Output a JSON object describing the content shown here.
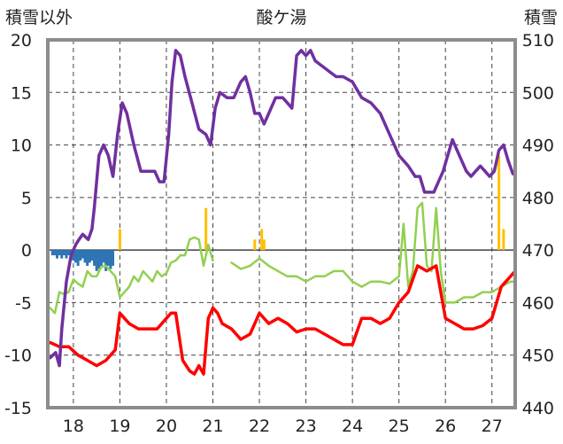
{
  "chart_data": {
    "type": "line",
    "title": "酸ケ湯",
    "left_axis": {
      "label": "積雪以外",
      "ylim": [
        -15,
        20
      ],
      "ticks": [
        20,
        15,
        10,
        5,
        0,
        -5,
        -10,
        -15
      ]
    },
    "right_axis": {
      "label": "積雪",
      "ylim": [
        440,
        510
      ],
      "ticks": [
        510,
        500,
        490,
        480,
        470,
        460,
        450,
        440
      ]
    },
    "x_axis": {
      "xlim": [
        17.45,
        27.5
      ],
      "ticks": [
        18,
        19,
        20,
        21,
        22,
        23,
        24,
        25,
        26,
        27
      ]
    },
    "grid": true,
    "series": [
      {
        "key": "snow_depth",
        "axis": "right",
        "color": "#7030a0",
        "x": [
          17.5,
          17.62,
          17.7,
          17.75,
          17.85,
          17.95,
          18.05,
          18.12,
          18.2,
          18.32,
          18.4,
          18.45,
          18.55,
          18.65,
          18.75,
          18.85,
          18.95,
          19.05,
          19.15,
          19.3,
          19.45,
          19.6,
          19.75,
          19.85,
          19.95,
          20.05,
          20.12,
          20.2,
          20.3,
          20.4,
          20.55,
          20.7,
          20.85,
          20.95,
          21.05,
          21.15,
          21.3,
          21.45,
          21.6,
          21.7,
          21.8,
          21.9,
          22.0,
          22.1,
          22.2,
          22.35,
          22.5,
          22.6,
          22.7,
          22.8,
          22.9,
          23.0,
          23.1,
          23.2,
          23.35,
          23.5,
          23.65,
          23.8,
          24.0,
          24.2,
          24.4,
          24.6,
          24.8,
          25.0,
          25.2,
          25.35,
          25.45,
          25.55,
          25.65,
          25.75,
          25.85,
          25.95,
          26.05,
          26.15,
          26.25,
          26.35,
          26.45,
          26.55,
          26.65,
          26.75,
          26.85,
          26.95,
          27.05,
          27.15,
          27.25,
          27.35,
          27.45
        ],
        "values": [
          449.5,
          450.5,
          448,
          455,
          464,
          469,
          471,
          472,
          473,
          472,
          474,
          478,
          488,
          490,
          488,
          484,
          492,
          498,
          496,
          490,
          485,
          485,
          485,
          483,
          483,
          492,
          502,
          508,
          507,
          503,
          498,
          493,
          492,
          490,
          497,
          500,
          499,
          499,
          502,
          503,
          500,
          496,
          496,
          494,
          496,
          499,
          499,
          498,
          497,
          507,
          508,
          507,
          508,
          506,
          505,
          504,
          503,
          503,
          502,
          499,
          498,
          496,
          492,
          488,
          486,
          484,
          484,
          481,
          481,
          481,
          483,
          485,
          488,
          491,
          489,
          487,
          485,
          484,
          485,
          486,
          485,
          484,
          485,
          489,
          490,
          487,
          484.5
        ]
      },
      {
        "key": "temperature",
        "axis": "left",
        "color": "#92d050",
        "x": [
          17.5,
          17.6,
          17.7,
          17.8,
          17.9,
          18.0,
          18.1,
          18.2,
          18.3,
          18.4,
          18.5,
          18.6,
          18.7,
          18.8,
          18.9,
          19.0,
          19.1,
          19.2,
          19.3,
          19.4,
          19.5,
          19.6,
          19.7,
          19.8,
          19.9,
          20.0,
          20.1,
          20.2,
          20.3,
          20.4,
          20.5,
          20.6,
          20.7,
          20.8,
          20.9,
          21.0,
          21.2,
          21.4,
          21.6,
          21.8,
          22.0,
          22.2,
          22.4,
          22.6,
          22.8,
          23.0,
          23.2,
          23.4,
          23.6,
          23.8,
          24.0,
          24.2,
          24.4,
          24.6,
          24.8,
          25.0,
          25.1,
          25.2,
          25.3,
          25.4,
          25.5,
          25.6,
          25.7,
          25.8,
          25.9,
          26.0,
          26.1,
          26.2,
          26.4,
          26.6,
          26.8,
          27.0,
          27.2,
          27.4,
          27.5
        ],
        "values": [
          -5.5,
          -6.0,
          -4.0,
          -4.2,
          -4.0,
          -2.8,
          -3.2,
          -3.5,
          -2.0,
          -2.5,
          -2.5,
          -1.6,
          -1.5,
          -2.0,
          -2.5,
          -4.5,
          -4.0,
          -3.5,
          -2.5,
          -3.0,
          -2.0,
          -2.5,
          -3.0,
          -2.0,
          -2.5,
          -2.2,
          -1.2,
          -1.0,
          -0.5,
          -0.5,
          1.0,
          1.2,
          1.0,
          -1.5,
          0.5,
          -1.0,
          null,
          -1.2,
          -1.8,
          -1.5,
          -0.8,
          -1.5,
          -2.0,
          -2.5,
          -2.5,
          -3.0,
          -2.5,
          -2.5,
          -2.0,
          -2.0,
          -3.0,
          -3.5,
          -3.0,
          -3.0,
          -3.2,
          -2.5,
          2.5,
          -3.5,
          -2.0,
          4.0,
          4.5,
          -1.5,
          -2.0,
          4.0,
          -2.0,
          -5.0,
          -5.0,
          -5.0,
          -4.5,
          -4.5,
          -4.0,
          -4.0,
          -3.5,
          -3.0,
          -3.0
        ]
      },
      {
        "key": "dew_point",
        "axis": "left",
        "color": "#ff0000",
        "x": [
          17.5,
          17.7,
          17.9,
          18.1,
          18.3,
          18.5,
          18.7,
          18.9,
          19.0,
          19.2,
          19.4,
          19.6,
          19.8,
          20.0,
          20.1,
          20.2,
          20.35,
          20.5,
          20.6,
          20.7,
          20.8,
          20.9,
          21.0,
          21.1,
          21.2,
          21.4,
          21.6,
          21.8,
          22.0,
          22.2,
          22.4,
          22.6,
          22.8,
          23.0,
          23.2,
          23.4,
          23.6,
          23.8,
          24.0,
          24.2,
          24.4,
          24.6,
          24.8,
          25.0,
          25.2,
          25.4,
          25.6,
          25.8,
          26.0,
          26.2,
          26.4,
          26.6,
          26.8,
          27.0,
          27.2,
          27.4,
          27.5
        ],
        "values": [
          -8.8,
          -9.2,
          -9.2,
          -10.0,
          -10.5,
          -11.0,
          -10.5,
          -9.5,
          -6.0,
          -7.0,
          -7.5,
          -7.5,
          -7.5,
          -6.5,
          -6.0,
          -6.0,
          -10.5,
          -11.5,
          -11.8,
          -11.0,
          -11.8,
          -6.5,
          -5.5,
          -6.0,
          -7.0,
          -7.5,
          -8.5,
          -8.0,
          -6.0,
          -7.0,
          -6.5,
          -7.0,
          -7.8,
          -7.5,
          -7.5,
          -8.0,
          -8.5,
          -9.0,
          -9.0,
          -6.5,
          -6.5,
          -7.0,
          -6.5,
          -5.0,
          -4.0,
          -1.5,
          -2.0,
          -1.5,
          -6.5,
          -7.0,
          -7.5,
          -7.5,
          -7.2,
          -6.5,
          -3.5,
          -2.5,
          -2.0
        ]
      }
    ],
    "bars_yellow": {
      "axis": "left",
      "color": "#ffc000",
      "bars": [
        {
          "x": 19.0,
          "value": 2.0
        },
        {
          "x": 20.85,
          "value": 4.0
        },
        {
          "x": 21.9,
          "value": 1.0
        },
        {
          "x": 22.05,
          "value": 2.0
        },
        {
          "x": 22.1,
          "value": 1.0
        },
        {
          "x": 27.15,
          "value": 9.0
        },
        {
          "x": 27.25,
          "value": 2.0
        }
      ]
    },
    "bars_blue": {
      "axis": "left",
      "color": "#2e75b6",
      "x": [
        17.55,
        17.6,
        17.65,
        17.7,
        17.75,
        17.8,
        17.85,
        17.9,
        17.95,
        18.0,
        18.05,
        18.1,
        18.15,
        18.2,
        18.25,
        18.3,
        18.35,
        18.4,
        18.45,
        18.5,
        18.55,
        18.6,
        18.65,
        18.7,
        18.75,
        18.8,
        18.85
      ],
      "values": [
        -0.5,
        -0.5,
        -0.8,
        -0.5,
        -0.8,
        -0.5,
        -0.8,
        -0.5,
        -0.5,
        -1.0,
        -1.2,
        -1.5,
        -1.0,
        -0.8,
        -1.2,
        -1.5,
        -1.2,
        -1.0,
        -1.5,
        -2.0,
        -1.8,
        -1.5,
        -1.2,
        -2.0,
        -1.5,
        -1.8,
        -1.5
      ]
    }
  }
}
